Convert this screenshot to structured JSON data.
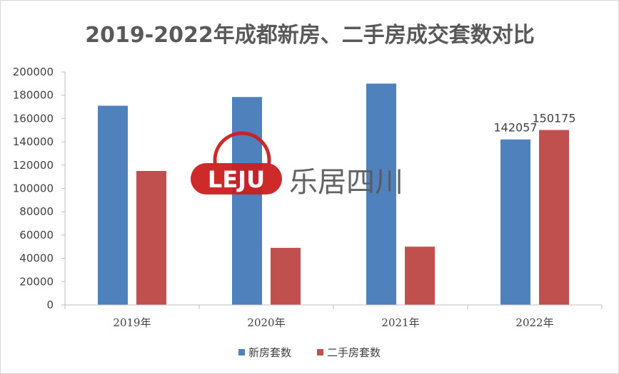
{
  "chart_data": {
    "type": "bar",
    "title": "2019-2022年成都新房、二手房成交套数对比",
    "categories": [
      "2019年",
      "2020年",
      "2021年",
      "2022年"
    ],
    "series": [
      {
        "name": "新房套数",
        "values": [
          171000,
          178500,
          190000,
          142057
        ],
        "color": "#4f81bd"
      },
      {
        "name": "二手房套数",
        "values": [
          115000,
          49000,
          50000,
          150175
        ],
        "color": "#c0504d"
      }
    ],
    "data_labels": [
      {
        "series": 0,
        "category": 3,
        "text": "142057"
      },
      {
        "series": 1,
        "category": 3,
        "text": "150175"
      }
    ],
    "ylim": [
      0,
      200000
    ],
    "yticks": [
      0,
      20000,
      40000,
      60000,
      80000,
      100000,
      120000,
      140000,
      160000,
      180000,
      200000
    ],
    "ytick_labels": [
      "0",
      "20000",
      "40000",
      "60000",
      "80000",
      "100000",
      "120000",
      "140000",
      "160000",
      "180000",
      "200000"
    ],
    "grid": false,
    "legend_position": "bottom"
  },
  "watermark": {
    "logo_text": "LEJU",
    "brand_text": "乐居四川",
    "logo_color": "#cc1f1f"
  }
}
